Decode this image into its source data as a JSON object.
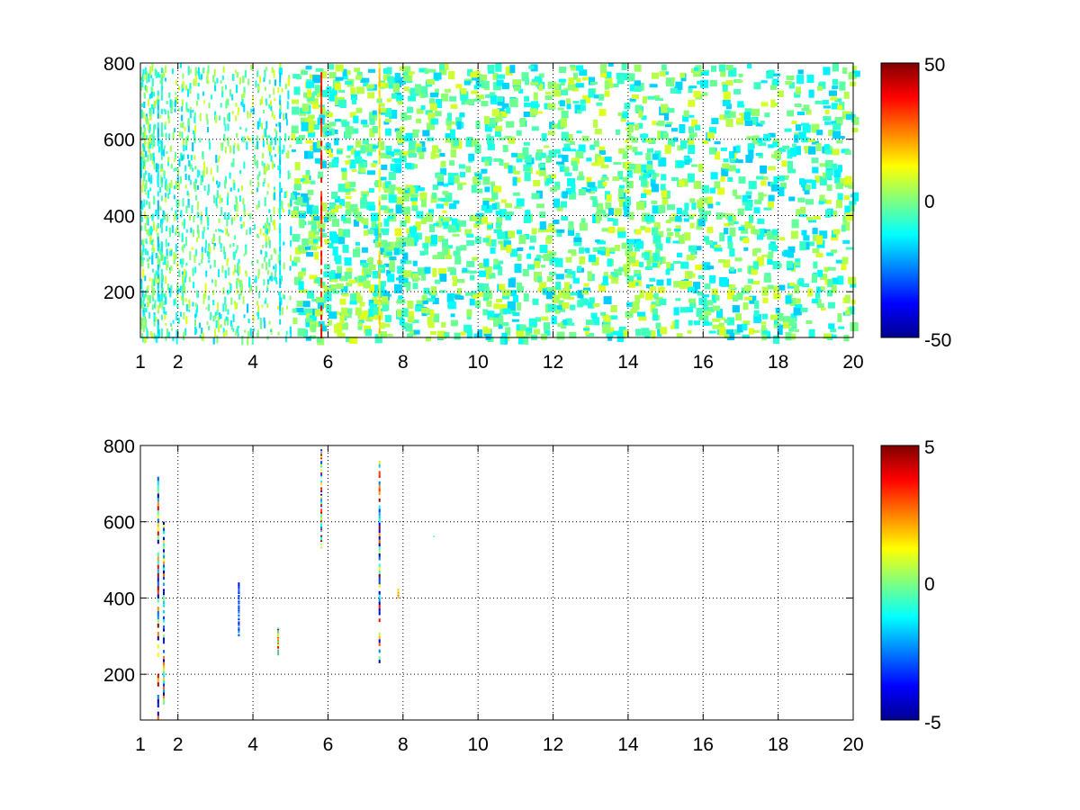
{
  "chart_data": [
    {
      "type": "heatmap",
      "colormap": "jet",
      "xlim": [
        1,
        20
      ],
      "ylim": [
        80,
        800
      ],
      "x_ticks": [
        "1",
        "2",
        "4",
        "6",
        "8",
        "10",
        "12",
        "14",
        "16",
        "18",
        "20"
      ],
      "y_ticks": [
        "200",
        "400",
        "600",
        "800"
      ],
      "grid": true,
      "colorbar": {
        "min": -50,
        "max": 50,
        "ticks": [
          "50",
          "0",
          "-50"
        ]
      },
      "background": "#ffffff",
      "description_of_values": "sparse cells, values mostly in [-20, 10], dense at low x and thinning toward high x",
      "strong_columns": [
        {
          "x": 1.45,
          "value": -15
        },
        {
          "x": 1.55,
          "value": -10
        },
        {
          "x": 4.7,
          "value": -15
        },
        {
          "x": 5.8,
          "value": 35
        },
        {
          "x": 7.35,
          "value": 15
        }
      ]
    },
    {
      "type": "heatmap",
      "colormap": "jet",
      "xlim": [
        1,
        20
      ],
      "ylim": [
        80,
        800
      ],
      "x_ticks": [
        "1",
        "2",
        "4",
        "6",
        "8",
        "10",
        "12",
        "14",
        "16",
        "18",
        "20"
      ],
      "y_ticks": [
        "200",
        "400",
        "600",
        "800"
      ],
      "grid": true,
      "colorbar": {
        "min": -5,
        "max": 5,
        "ticks": [
          "5",
          "0",
          "-5"
        ]
      },
      "background": "#ffffff",
      "features": [
        {
          "x": 1.45,
          "y_range": [
            80,
            740
          ],
          "value_range": [
            -5,
            5
          ]
        },
        {
          "x": 1.6,
          "y_range": [
            120,
            600
          ],
          "value_range": [
            -5,
            3
          ]
        },
        {
          "x": 3.6,
          "y_range": [
            300,
            440
          ],
          "value_range": [
            -4,
            -2
          ]
        },
        {
          "x": 4.65,
          "y_range": [
            250,
            320
          ],
          "value_range": [
            -2,
            5
          ]
        },
        {
          "x": 5.8,
          "y_range": [
            530,
            790
          ],
          "value_range": [
            -5,
            5
          ]
        },
        {
          "x": 7.35,
          "y_range": [
            220,
            760
          ],
          "value_range": [
            -5,
            5
          ]
        },
        {
          "x": 7.85,
          "y_range": [
            400,
            430
          ],
          "value_range": [
            1,
            3
          ]
        },
        {
          "x": 8.8,
          "y_range": [
            560,
            566
          ],
          "value_range": [
            -1,
            0
          ]
        }
      ]
    }
  ]
}
